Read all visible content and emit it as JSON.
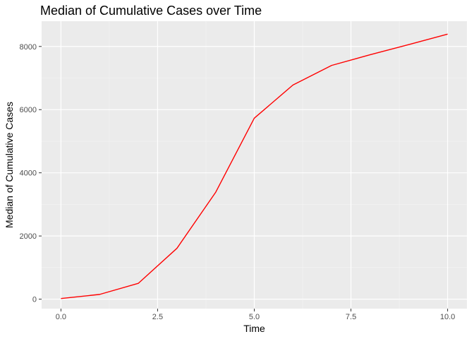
{
  "chart_data": {
    "type": "line",
    "title": "Median of Cumulative Cases over Time",
    "xlabel": "Time",
    "ylabel": "Median of Cumulative Cases",
    "xlim": [
      -0.5,
      10.5
    ],
    "ylim": [
      -300,
      8800
    ],
    "x_ticks": [
      0,
      2.5,
      5,
      7.5,
      10
    ],
    "x_tick_labels": [
      "0.0",
      "2.5",
      "5.0",
      "7.5",
      "10.0"
    ],
    "y_ticks": [
      0,
      2000,
      4000,
      6000,
      8000
    ],
    "y_tick_labels": [
      "0",
      "2000",
      "4000",
      "6000",
      "8000"
    ],
    "grid": true,
    "series": [
      {
        "color": "#ff0000",
        "x": [
          0,
          1,
          2,
          3,
          4,
          5,
          6,
          7,
          8,
          9,
          10
        ],
        "y": [
          20,
          150,
          500,
          1610,
          3380,
          5730,
          6780,
          7400,
          7740,
          8060,
          8390
        ]
      }
    ]
  }
}
